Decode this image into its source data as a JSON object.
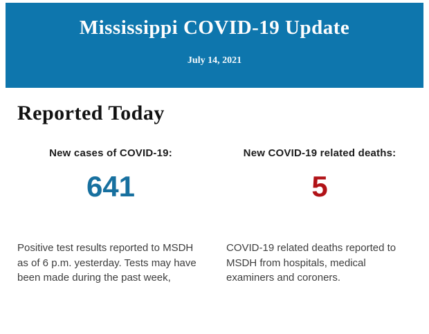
{
  "header": {
    "title": "Mississippi COVID-19 Update",
    "date": "July 14, 2021",
    "background_color": "#0e76ad",
    "text_color": "#ffffff"
  },
  "main": {
    "section_title": "Reported Today",
    "cases": {
      "label": "New cases of COVID-19:",
      "value": "641",
      "value_color": "#17709f",
      "description": "Positive test results reported to MSDH as of 6 p.m. yesterday. Tests may have been made during the past week,"
    },
    "deaths": {
      "label": "New COVID-19 related deaths:",
      "value": "5",
      "value_color": "#b11217",
      "description": "COVID-19 related deaths reported to MSDH from hospitals, medical examiners and coroners."
    }
  }
}
